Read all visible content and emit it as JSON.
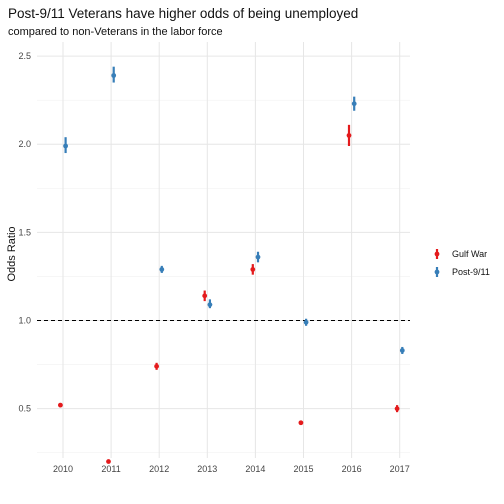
{
  "chart_data": {
    "type": "scatter",
    "title": "Post-9/11 Veterans have higher odds of being unemployed",
    "subtitle": "compared to non-Veterans in the labor force",
    "xlabel": "",
    "ylabel": "Odds Ratio",
    "categories": [
      "2010",
      "2011",
      "2012",
      "2013",
      "2014",
      "2015",
      "2016",
      "2017"
    ],
    "yticks": [
      "0.5",
      "1.0",
      "1.5",
      "2.0",
      "2.5"
    ],
    "ylim": [
      0.22,
      2.58
    ],
    "reference_line": 1.0,
    "grid": true,
    "legend_position": "right",
    "series": [
      {
        "name": "Gulf War",
        "color": "#e41a1c",
        "points": [
          {
            "x": "2010",
            "y": 0.52,
            "lo": 0.51,
            "hi": 0.53
          },
          {
            "x": "2011",
            "y": 0.2,
            "lo": 0.19,
            "hi": 0.21
          },
          {
            "x": "2012",
            "y": 0.74,
            "lo": 0.72,
            "hi": 0.76
          },
          {
            "x": "2013",
            "y": 1.14,
            "lo": 1.11,
            "hi": 1.17
          },
          {
            "x": "2014",
            "y": 1.29,
            "lo": 1.26,
            "hi": 1.32
          },
          {
            "x": "2015",
            "y": 0.42,
            "lo": 0.41,
            "hi": 0.43
          },
          {
            "x": "2016",
            "y": 2.05,
            "lo": 1.99,
            "hi": 2.11
          },
          {
            "x": "2017",
            "y": 0.5,
            "lo": 0.48,
            "hi": 0.52
          }
        ]
      },
      {
        "name": "Post-9/11",
        "color": "#377eb8",
        "points": [
          {
            "x": "2010",
            "y": 1.99,
            "lo": 1.95,
            "hi": 2.04
          },
          {
            "x": "2011",
            "y": 2.39,
            "lo": 2.35,
            "hi": 2.44
          },
          {
            "x": "2012",
            "y": 1.29,
            "lo": 1.27,
            "hi": 1.31
          },
          {
            "x": "2013",
            "y": 1.09,
            "lo": 1.07,
            "hi": 1.12
          },
          {
            "x": "2014",
            "y": 1.36,
            "lo": 1.33,
            "hi": 1.39
          },
          {
            "x": "2015",
            "y": 0.99,
            "lo": 0.97,
            "hi": 1.01
          },
          {
            "x": "2016",
            "y": 2.23,
            "lo": 2.19,
            "hi": 2.27
          },
          {
            "x": "2017",
            "y": 0.83,
            "lo": 0.81,
            "hi": 0.85
          }
        ]
      }
    ]
  }
}
